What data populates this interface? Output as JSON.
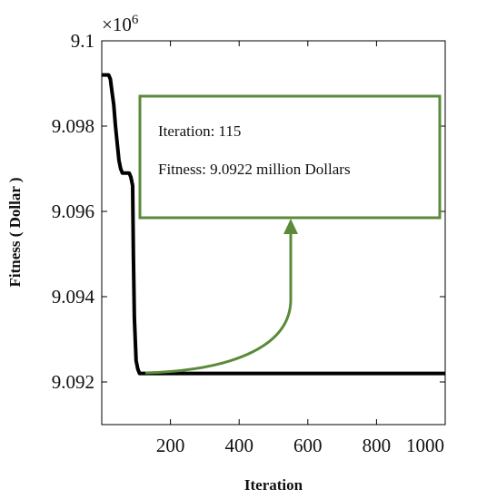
{
  "chart_data": {
    "type": "line",
    "title": "",
    "xlabel": "Iteration",
    "ylabel": "Fitness ( Dollar )",
    "y_multiplier_label": "×10",
    "y_multiplier_exponent": "6",
    "xlim": [
      0,
      1000
    ],
    "ylim": [
      9.091,
      9.1
    ],
    "xticks": [
      200,
      400,
      600,
      800,
      1000
    ],
    "xtick_labels": [
      "200",
      "400",
      "600",
      "800",
      "1000"
    ],
    "yticks": [
      9.092,
      9.094,
      9.096,
      9.098,
      9.1
    ],
    "ytick_labels": [
      "9.092",
      "9.094",
      "9.096",
      "9.098",
      "9.1"
    ],
    "grid": false,
    "line_color": "#000000",
    "annotation_color": "#5a8a3a",
    "series": [
      {
        "x": [
          1,
          10,
          20,
          25,
          30,
          35,
          40,
          45,
          50,
          55,
          60,
          65,
          70,
          75,
          80,
          85,
          90,
          92,
          95,
          100,
          105,
          110,
          115,
          200,
          400,
          600,
          800,
          1000
        ],
        "values": [
          9.0992,
          9.0992,
          9.0992,
          9.0991,
          9.0988,
          9.0985,
          9.098,
          9.0976,
          9.0972,
          9.097,
          9.0969,
          9.0969,
          9.0969,
          9.0969,
          9.0969,
          9.0968,
          9.0966,
          9.095,
          9.0935,
          9.0925,
          9.0923,
          9.0922,
          9.0922,
          9.0922,
          9.0922,
          9.0922,
          9.0922,
          9.0922
        ]
      }
    ],
    "annotation": {
      "line1": "Iteration: 115",
      "line2": "Fitness: 9.0922 million Dollars",
      "point_x": 115,
      "point_y": 9.0922
    }
  }
}
